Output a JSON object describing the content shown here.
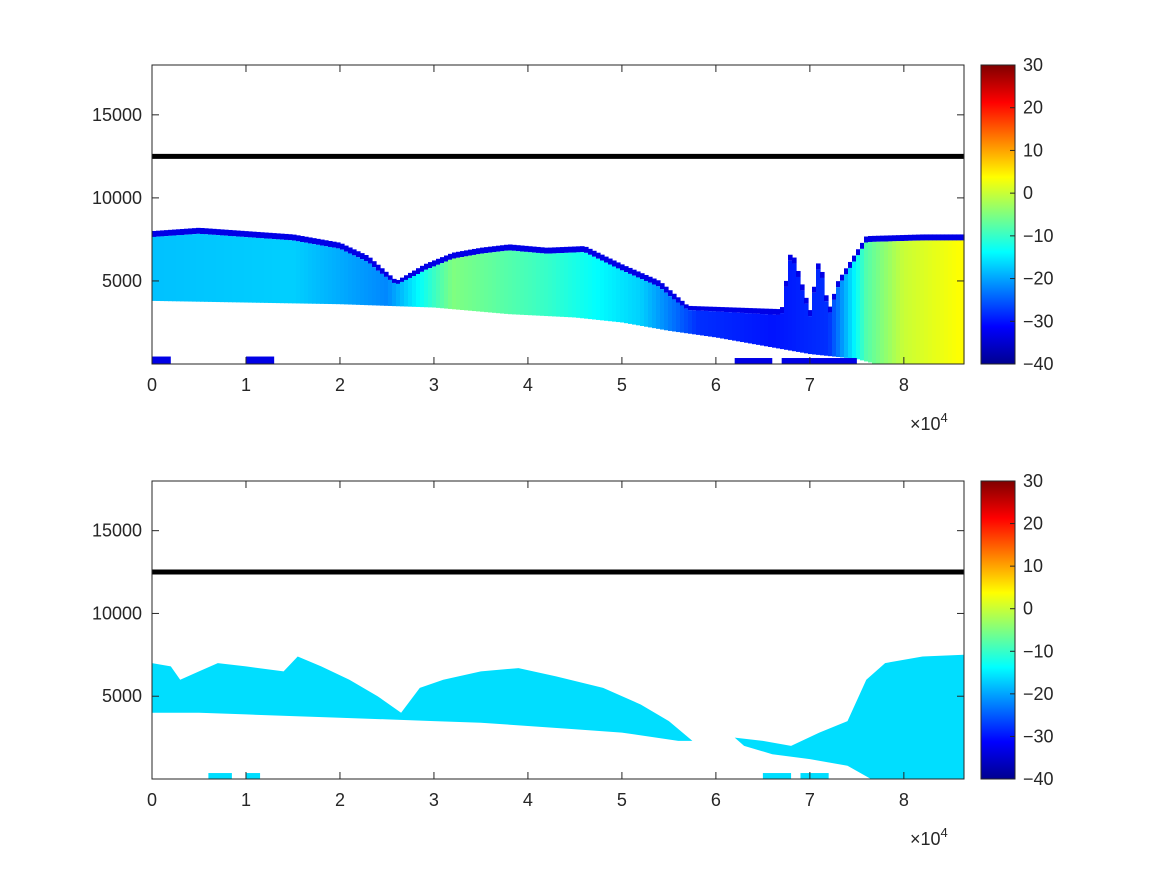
{
  "chart_data": [
    {
      "type": "heatmap",
      "panel": "top",
      "title": "",
      "xlabel": "",
      "ylabel": "",
      "x_exponent_label": "×10^4",
      "x_exponent_base": "×10",
      "x_exponent_power": "4",
      "xlim": [
        0,
        86400
      ],
      "ylim": [
        0,
        18000
      ],
      "xticks": [
        0,
        10000,
        20000,
        30000,
        40000,
        50000,
        60000,
        70000,
        80000
      ],
      "xtick_labels": [
        "0",
        "1",
        "2",
        "3",
        "4",
        "5",
        "6",
        "7",
        "8"
      ],
      "yticks": [
        5000,
        10000,
        15000
      ],
      "ytick_labels": [
        "5000",
        "10000",
        "15000"
      ],
      "colormap": "jet",
      "clim": [
        -40,
        30
      ],
      "colorbar_ticks": [
        30,
        20,
        10,
        0,
        -10,
        -20,
        -30,
        -40
      ],
      "colorbar_labels": [
        "30",
        "20",
        "10",
        "0",
        "−10",
        "−20",
        "−30",
        "−40"
      ],
      "reference_line": {
        "y": 12500,
        "color": "#000000"
      },
      "field": {
        "top_boundary": [
          [
            0,
            8000
          ],
          [
            5000,
            8200
          ],
          [
            10000,
            8000
          ],
          [
            15000,
            7800
          ],
          [
            20000,
            7300
          ],
          [
            23000,
            6500
          ],
          [
            26000,
            5000
          ],
          [
            29000,
            6000
          ],
          [
            32000,
            6700
          ],
          [
            35000,
            7000
          ],
          [
            38000,
            7200
          ],
          [
            42000,
            7000
          ],
          [
            46000,
            7100
          ],
          [
            50000,
            6000
          ],
          [
            54000,
            5000
          ],
          [
            57000,
            3500
          ],
          [
            62000,
            3400
          ],
          [
            67000,
            3300
          ],
          [
            70000,
            3200
          ],
          [
            72000,
            3200
          ],
          [
            73000,
            5000
          ],
          [
            71000,
            6500
          ],
          [
            68000,
            7000
          ],
          [
            72000,
            7600
          ],
          [
            76000,
            7700
          ],
          [
            82000,
            7800
          ],
          [
            86400,
            7800
          ]
        ],
        "bottom_boundary": [
          [
            0,
            3800
          ],
          [
            10000,
            3700
          ],
          [
            20000,
            3600
          ],
          [
            30000,
            3400
          ],
          [
            38000,
            3000
          ],
          [
            45000,
            2800
          ],
          [
            50000,
            2500
          ],
          [
            55000,
            2000
          ],
          [
            60000,
            1600
          ],
          [
            65000,
            1100
          ],
          [
            70000,
            600
          ],
          [
            75000,
            300
          ],
          [
            77000,
            0
          ],
          [
            86400,
            0
          ]
        ],
        "value_profile": [
          [
            0,
            -18
          ],
          [
            15000,
            -17
          ],
          [
            25000,
            -22
          ],
          [
            32000,
            -5
          ],
          [
            42000,
            -10
          ],
          [
            52000,
            -17
          ],
          [
            58000,
            -28
          ],
          [
            66000,
            -30
          ],
          [
            72000,
            -28
          ],
          [
            76000,
            -8
          ],
          [
            80000,
            0
          ],
          [
            86400,
            4
          ]
        ],
        "near_ground_patches": [
          [
            0,
            2000,
            150,
            -33
          ],
          [
            10000,
            13000,
            150,
            -33
          ],
          [
            62000,
            66000,
            120,
            -33
          ],
          [
            67000,
            75000,
            120,
            -33
          ]
        ]
      }
    },
    {
      "type": "heatmap",
      "panel": "bottom",
      "title": "",
      "xlabel": "",
      "ylabel": "",
      "x_exponent_label": "×10^4",
      "x_exponent_base": "×10",
      "x_exponent_power": "4",
      "xlim": [
        0,
        86400
      ],
      "ylim": [
        0,
        18000
      ],
      "xticks": [
        0,
        10000,
        20000,
        30000,
        40000,
        50000,
        60000,
        70000,
        80000
      ],
      "xtick_labels": [
        "0",
        "1",
        "2",
        "3",
        "4",
        "5",
        "6",
        "7",
        "8"
      ],
      "yticks": [
        5000,
        10000,
        15000
      ],
      "ytick_labels": [
        "5000",
        "10000",
        "15000"
      ],
      "colormap": "jet",
      "clim": [
        -40,
        30
      ],
      "colorbar_ticks": [
        30,
        20,
        10,
        0,
        -10,
        -20,
        -30,
        -40
      ],
      "colorbar_labels": [
        "30",
        "20",
        "10",
        "0",
        "−10",
        "−20",
        "−30",
        "−40"
      ],
      "reference_line": {
        "y": 12500,
        "color": "#000000"
      },
      "field": {
        "uniform_value": -16,
        "regions": [
          [
            [
              0,
              7000
            ],
            [
              2000,
              6800
            ],
            [
              3000,
              6000
            ],
            [
              5000,
              6500
            ],
            [
              7000,
              7000
            ],
            [
              10000,
              6800
            ],
            [
              14000,
              6500
            ],
            [
              15500,
              7400
            ],
            [
              18000,
              6800
            ],
            [
              21000,
              6000
            ],
            [
              24000,
              5000
            ],
            [
              26500,
              4000
            ],
            [
              28500,
              5500
            ],
            [
              31000,
              6000
            ],
            [
              35000,
              6500
            ],
            [
              39000,
              6700
            ],
            [
              43000,
              6200
            ],
            [
              48000,
              5500
            ],
            [
              52000,
              4500
            ],
            [
              55000,
              3500
            ],
            [
              57500,
              2300
            ],
            [
              56000,
              2300
            ],
            [
              50000,
              2800
            ],
            [
              45000,
              3000
            ],
            [
              40000,
              3200
            ],
            [
              35000,
              3400
            ],
            [
              30000,
              3500
            ],
            [
              25000,
              3600
            ],
            [
              20000,
              3700
            ],
            [
              15000,
              3800
            ],
            [
              10000,
              3900
            ],
            [
              5000,
              4000
            ],
            [
              0,
              4000
            ]
          ],
          [
            [
              62000,
              2500
            ],
            [
              65000,
              2300
            ],
            [
              68000,
              2000
            ],
            [
              71000,
              2800
            ],
            [
              74000,
              3500
            ],
            [
              76000,
              6000
            ],
            [
              78000,
              7000
            ],
            [
              82000,
              7400
            ],
            [
              86400,
              7500
            ],
            [
              86400,
              0
            ],
            [
              76500,
              0
            ],
            [
              74000,
              800
            ],
            [
              70000,
              1200
            ],
            [
              66000,
              1500
            ],
            [
              63000,
              2000
            ]
          ]
        ],
        "near_ground_patches": [
          [
            6000,
            8500,
            120
          ],
          [
            10000,
            11500,
            120
          ],
          [
            65000,
            68000,
            120
          ],
          [
            69000,
            72000,
            120
          ]
        ]
      }
    }
  ]
}
